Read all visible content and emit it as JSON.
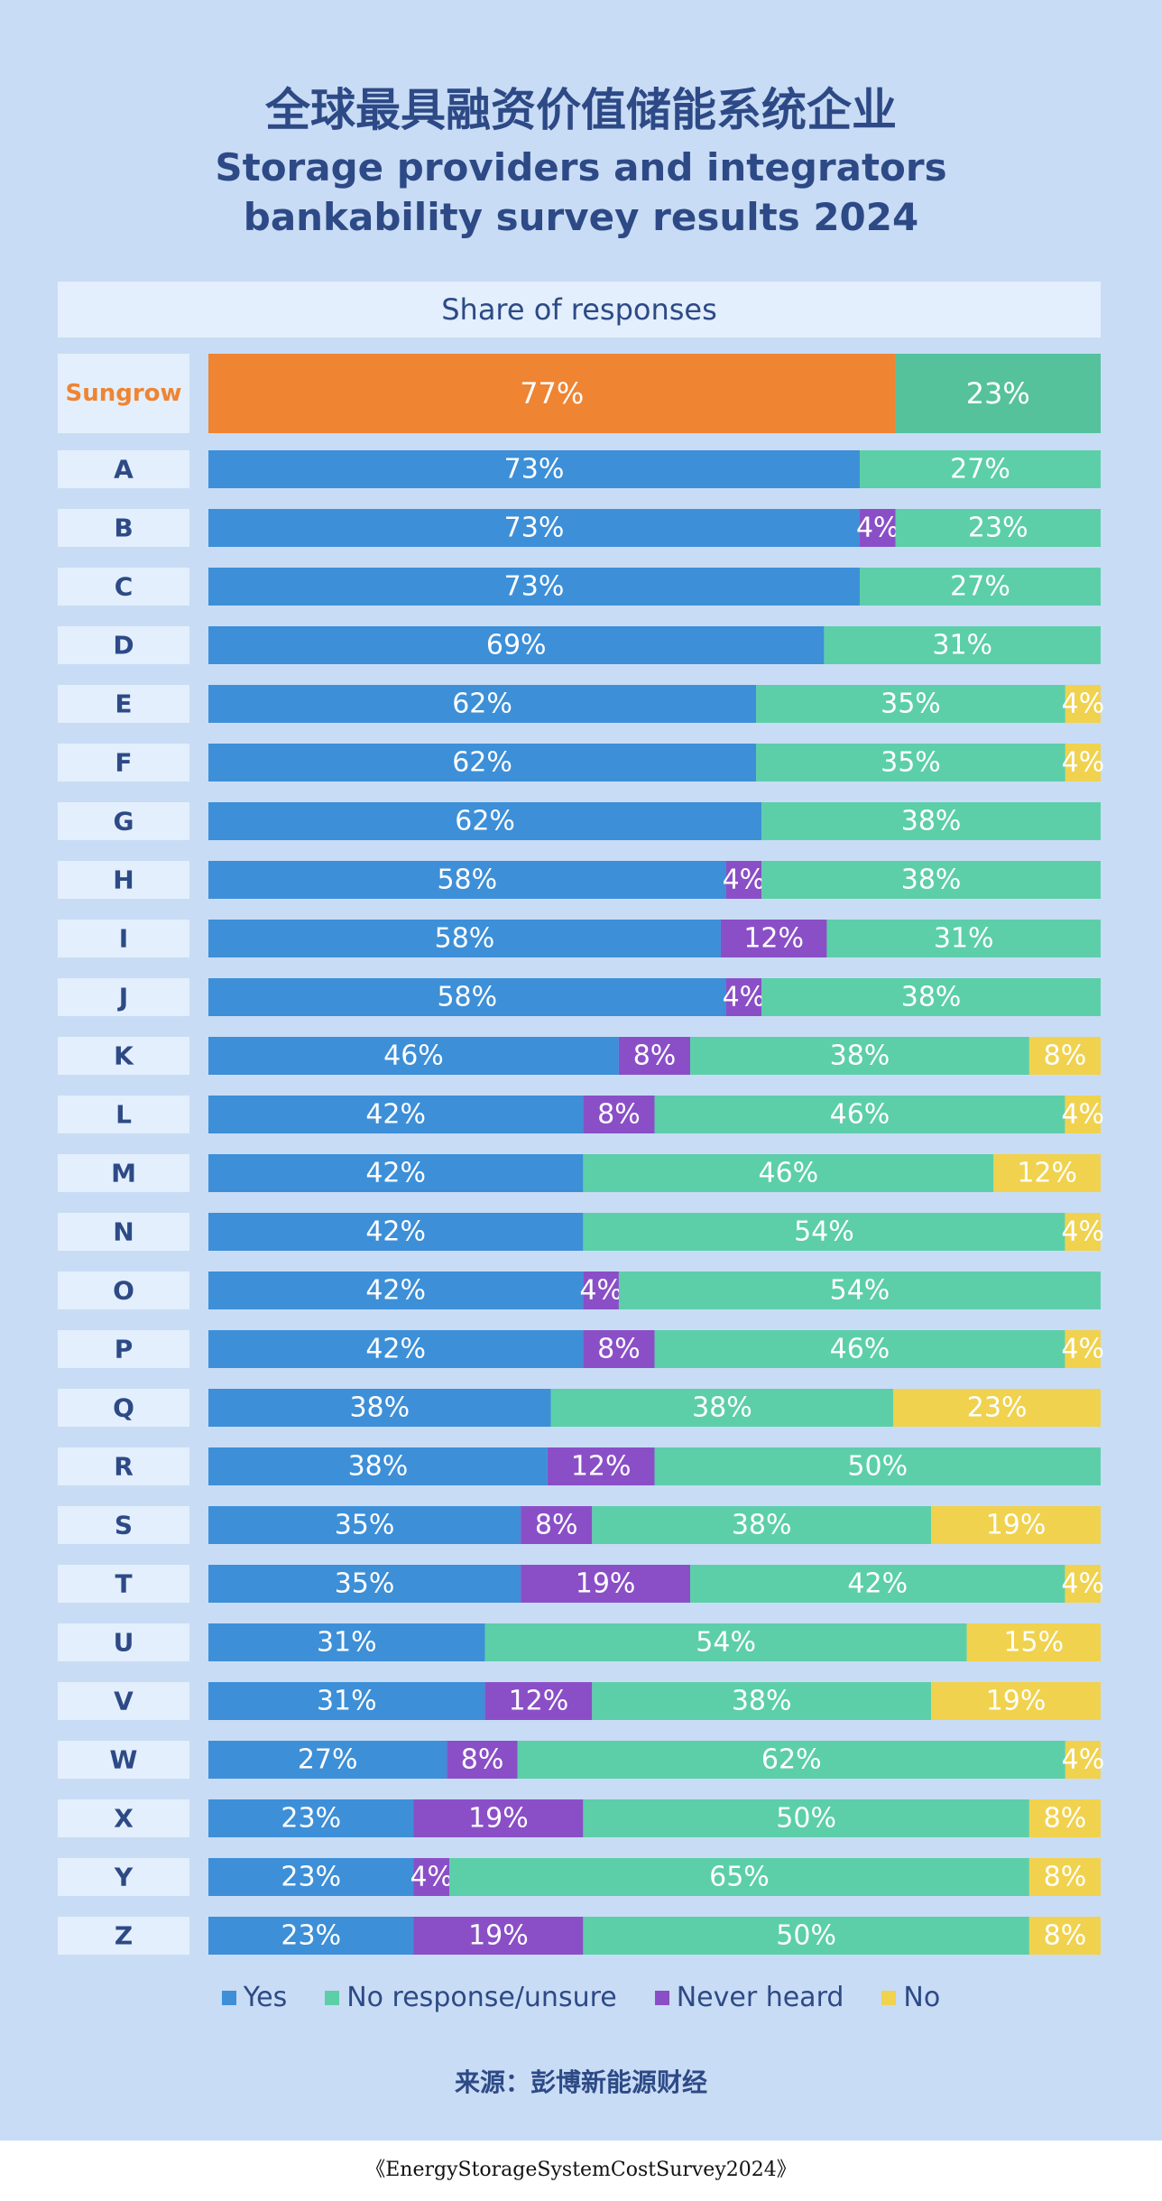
{
  "title_cn": "全球最具融资价值储能系统企业",
  "title_en_line1": "Storage providers and integrators",
  "title_en_line2": "bankability survey results 2024",
  "header": "Share of responses",
  "source": "来源：彭博新能源财经",
  "caption": "《EnergyStorageSystemCostSurvey2024》",
  "colors": {
    "yes": "#3d8fd8",
    "no_response": "#5ccfa8",
    "never_heard": "#8a4fc7",
    "no": "#f0d24e",
    "sungrow_yes": "#ef8432",
    "sungrow_no_response": "#55c29c",
    "sungrow_label": "#ef8432",
    "label_box": "#e3effc",
    "label_text": "#2d4a86"
  },
  "chart_data": {
    "type": "bar",
    "stacked": true,
    "orientation": "horizontal",
    "title": "Storage providers and integrators bankability survey results 2024",
    "legend_position": "bottom",
    "xlim": [
      0,
      100
    ],
    "categories": [
      "Sungrow",
      "A",
      "B",
      "C",
      "D",
      "E",
      "F",
      "G",
      "H",
      "I",
      "J",
      "K",
      "L",
      "M",
      "N",
      "O",
      "P",
      "Q",
      "R",
      "S",
      "T",
      "U",
      "V",
      "W",
      "X",
      "Y",
      "Z"
    ],
    "series": [
      {
        "name": "Yes",
        "values": [
          77,
          73,
          73,
          73,
          69,
          62,
          62,
          62,
          58,
          58,
          58,
          46,
          42,
          42,
          42,
          42,
          42,
          38,
          38,
          35,
          35,
          31,
          31,
          27,
          23,
          23,
          23
        ]
      },
      {
        "name": "Never heard",
        "values": [
          0,
          0,
          4,
          0,
          0,
          0,
          0,
          0,
          4,
          12,
          4,
          8,
          8,
          0,
          0,
          4,
          8,
          0,
          12,
          8,
          19,
          0,
          12,
          8,
          19,
          4,
          19
        ]
      },
      {
        "name": "No response/unsure",
        "values": [
          23,
          27,
          23,
          27,
          31,
          35,
          35,
          38,
          38,
          31,
          38,
          38,
          46,
          46,
          54,
          54,
          46,
          38,
          50,
          38,
          42,
          54,
          38,
          62,
          50,
          65,
          50
        ]
      },
      {
        "name": "No",
        "values": [
          0,
          0,
          0,
          0,
          0,
          4,
          4,
          0,
          0,
          0,
          0,
          8,
          4,
          12,
          4,
          0,
          4,
          23,
          0,
          19,
          4,
          15,
          19,
          4,
          8,
          8,
          8
        ]
      }
    ]
  }
}
